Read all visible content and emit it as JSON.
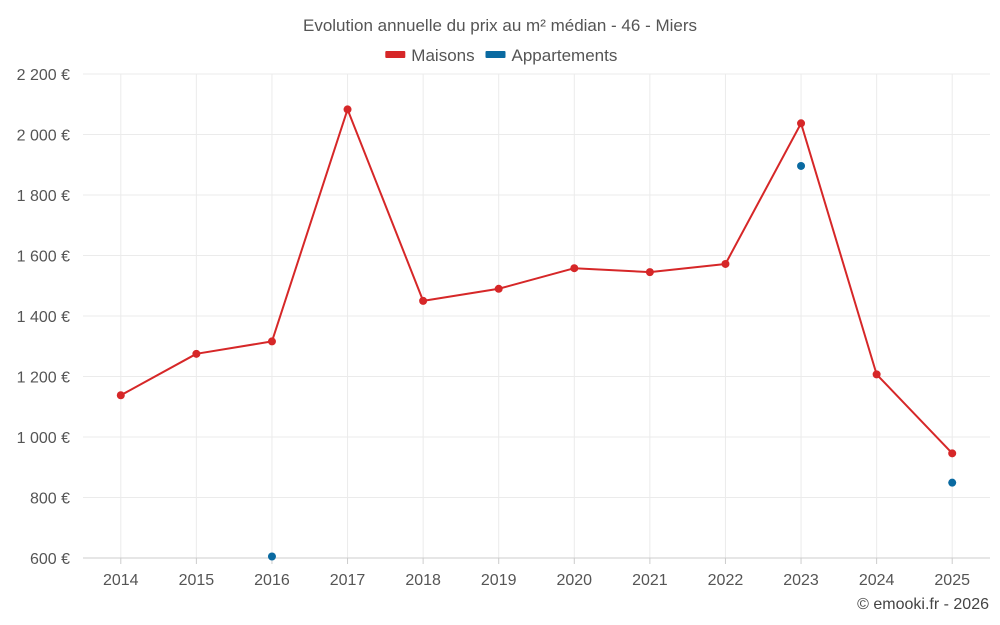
{
  "chart_data": {
    "type": "line",
    "title": "Evolution annuelle du prix au m² médian - 46 - Miers",
    "categories": [
      "2014",
      "2015",
      "2016",
      "2017",
      "2018",
      "2019",
      "2020",
      "2021",
      "2022",
      "2023",
      "2024",
      "2025"
    ],
    "series": [
      {
        "name": "Maisons",
        "color": "#d62728",
        "values": [
          1138,
          1275,
          1316,
          2083,
          1450,
          1490,
          1558,
          1545,
          1572,
          2037,
          1207,
          946
        ]
      },
      {
        "name": "Appartements",
        "color": "#0a6aa1",
        "values": [
          null,
          null,
          605,
          null,
          null,
          null,
          null,
          null,
          null,
          1896,
          null,
          849
        ]
      }
    ],
    "ylim": [
      600,
      2200
    ],
    "yticks": [
      600,
      800,
      1000,
      1200,
      1400,
      1600,
      1800,
      2000,
      2200
    ],
    "ytick_labels": [
      "600 €",
      "800 €",
      "1 000 €",
      "1 200 €",
      "1 400 €",
      "1 600 €",
      "1 800 €",
      "2 000 €",
      "2 200 €"
    ],
    "grid": true,
    "legend_position": "top-center"
  },
  "credit": "© emooki.fr - 2026"
}
